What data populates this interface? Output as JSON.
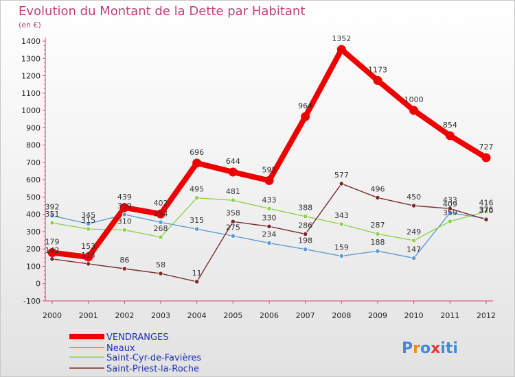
{
  "title": "Evolution du Montant de la Dette par Habitant",
  "subtitle": "(en €)",
  "logo": [
    "P",
    "r",
    "o",
    "x",
    "i",
    "t",
    "i"
  ],
  "chart_data": {
    "type": "line",
    "title": "Evolution du Montant de la Dette par Habitant",
    "subtitle": "(en €)",
    "xlabel": "",
    "ylabel": "",
    "ylim": [
      -100,
      1400
    ],
    "y_ticks": [
      -100,
      0,
      100,
      200,
      300,
      400,
      500,
      600,
      700,
      800,
      900,
      1000,
      1100,
      1200,
      1300,
      1400
    ],
    "x": [
      "2000",
      "2001",
      "2002",
      "2003",
      "2004",
      "2005",
      "2006",
      "2007",
      "2008",
      "2009",
      "2010",
      "2011",
      "2012"
    ],
    "grid": false,
    "legend_position": "bottom-left",
    "series": [
      {
        "name": "VENDRANGES",
        "color": "#ee0000",
        "values": [
          179,
          153,
          439,
          402,
          696,
          644,
          595,
          964,
          1352,
          1173,
          1000,
          854,
          727
        ]
      },
      {
        "name": "Neaux",
        "color": "#5b9bd5",
        "values": [
          392,
          345,
          399,
          354,
          315,
          275,
          234,
          198,
          159,
          188,
          147,
          409,
          376
        ]
      },
      {
        "name": "Saint-Cyr-de-Favières",
        "color": "#8fd14f",
        "values": [
          351,
          315,
          310,
          268,
          495,
          481,
          433,
          388,
          343,
          287,
          249,
          359,
          416
        ]
      },
      {
        "name": "Saint-Priest-la-Roche",
        "color": "#7a2b2b",
        "values": [
          142,
          114,
          86,
          58,
          11,
          358,
          330,
          286,
          577,
          496,
          450,
          433,
          370
        ]
      }
    ]
  }
}
